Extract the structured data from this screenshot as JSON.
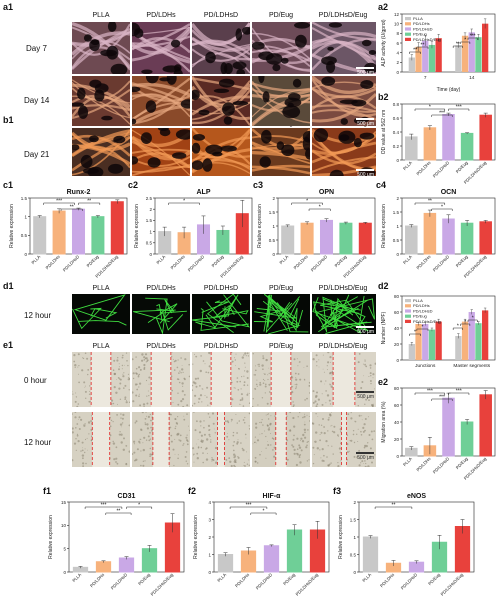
{
  "groups": [
    "PLLA",
    "PD/LDHs",
    "PD/LDHsD",
    "PD/Eug",
    "PD/LDHsD/Eug"
  ],
  "colors": [
    "#c8c8c8",
    "#f7b27c",
    "#c9a8e6",
    "#6fcf97",
    "#e8413c"
  ],
  "panel_labels": {
    "a1": "a1",
    "a2": "a2",
    "b1": "b1",
    "b2": "b2",
    "c1": "c1",
    "c2": "c2",
    "c3": "c3",
    "c4": "c4",
    "d1": "d1",
    "d2": "d2",
    "e1": "e1",
    "e2": "e2",
    "f1": "f1",
    "f2": "f2",
    "f3": "f3"
  },
  "micro": {
    "a1": {
      "rows": [
        "Day 7",
        "Day 14"
      ],
      "scale": "500 μm"
    },
    "b1": {
      "rows": [
        "Day 21"
      ],
      "scale": "500 μm"
    },
    "d1": {
      "rows": [
        "12 hour"
      ],
      "scale": "500 μm"
    },
    "e1": {
      "rows": [
        "0 hour",
        "12 hour"
      ],
      "scale": "500 μm"
    }
  },
  "chart_data": [
    {
      "id": "a2",
      "type": "bar",
      "title": "",
      "xlabel": "Time (day)",
      "ylabel": "ALP activity (U/gprot)",
      "categories": [
        "7",
        "14"
      ],
      "ylim": [
        0,
        12
      ],
      "yticks": [
        0,
        2,
        4,
        6,
        8,
        10,
        12
      ],
      "legend": "top-left",
      "series": [
        {
          "name": "PLLA",
          "values": [
            3.0,
            5.5
          ]
        },
        {
          "name": "PD/LDHs",
          "values": [
            5.2,
            7.5
          ]
        },
        {
          "name": "PD/LDHsD",
          "values": [
            6.5,
            8.2
          ]
        },
        {
          "name": "PD/Eug",
          "values": [
            5.6,
            7.2
          ]
        },
        {
          "name": "PD/LDHsD/Eug",
          "values": [
            7.0,
            10.0
          ]
        }
      ],
      "errors": [
        [
          0.6,
          0.9,
          1.1,
          0.7,
          0.8
        ],
        [
          0.5,
          0.6,
          0.7,
          0.6,
          1.0
        ]
      ],
      "sig": [
        "**",
        "*",
        "***",
        "**",
        "**"
      ]
    },
    {
      "id": "b2",
      "type": "bar",
      "title": "",
      "xlabel": "",
      "ylabel": "OD value at 562 nm",
      "categories": [
        "PLLA",
        "PD/LDHs",
        "PD/LDHsD",
        "PD/Eug",
        "PD/LDHsD/Eug"
      ],
      "ylim": [
        0,
        0.8
      ],
      "yticks": [
        0.0,
        0.2,
        0.4,
        0.6,
        0.8
      ],
      "values": [
        0.33,
        0.46,
        0.65,
        0.38,
        0.64
      ],
      "errors": [
        0.04,
        0.03,
        0.02,
        0.01,
        0.03
      ],
      "sig": [
        "*",
        "***",
        "***"
      ]
    },
    {
      "id": "c1",
      "type": "bar",
      "title": "Runx-2",
      "xlabel": "",
      "ylabel": "Relative expression",
      "categories": [
        "PLLA",
        "PD/LDHs",
        "PD/LDHsD",
        "PD/Eug",
        "PD/LDHsD/Eug"
      ],
      "ylim": [
        0,
        1.5
      ],
      "yticks": [
        0,
        0.5,
        1.0,
        1.5
      ],
      "values": [
        1.0,
        1.15,
        1.2,
        1.0,
        1.4
      ],
      "errors": [
        0.03,
        0.06,
        0.03,
        0.03,
        0.05
      ],
      "sig": [
        "***",
        "**",
        "**"
      ]
    },
    {
      "id": "c2",
      "type": "bar",
      "title": "ALP",
      "xlabel": "",
      "ylabel": "Relative expression",
      "categories": [
        "PLLA",
        "PD/LDHs",
        "PD/LDHsD",
        "PD/Eug",
        "PD/LDHsD/Eug"
      ],
      "ylim": [
        0,
        2.5
      ],
      "yticks": [
        0,
        0.5,
        1.0,
        1.5,
        2.0,
        2.5
      ],
      "values": [
        1.0,
        0.95,
        1.3,
        1.05,
        1.8
      ],
      "errors": [
        0.2,
        0.25,
        0.4,
        0.2,
        0.6
      ],
      "sig": [
        "*"
      ]
    },
    {
      "id": "c3",
      "type": "bar",
      "title": "OPN",
      "xlabel": "",
      "ylabel": "Relative expression",
      "categories": [
        "PLLA",
        "PD/LDHs",
        "PD/LDHsD",
        "PD/Eug",
        "PD/LDHsD/Eug"
      ],
      "ylim": [
        0,
        2.0
      ],
      "yticks": [
        0,
        0.5,
        1.0,
        1.5,
        2.0
      ],
      "values": [
        1.0,
        1.1,
        1.2,
        1.1,
        1.1
      ],
      "errors": [
        0.04,
        0.05,
        0.06,
        0.04,
        0.03
      ],
      "sig": [
        "*",
        "*"
      ]
    },
    {
      "id": "c4",
      "type": "bar",
      "title": "OCN",
      "xlabel": "",
      "ylabel": "Relative expression",
      "categories": [
        "PLLA",
        "PD/LDHs",
        "PD/LDHsD",
        "PD/Eug",
        "PD/LDHsD/Eug"
      ],
      "ylim": [
        0,
        2.0
      ],
      "yticks": [
        0,
        0.5,
        1.0,
        1.5,
        2.0
      ],
      "values": [
        1.0,
        1.45,
        1.25,
        1.1,
        1.15
      ],
      "errors": [
        0.05,
        0.12,
        0.15,
        0.1,
        0.05
      ],
      "sig": [
        "**",
        "*"
      ]
    },
    {
      "id": "d2",
      "type": "bar",
      "title": "",
      "xlabel": "",
      "ylabel": "Number (NPF)",
      "categories": [
        "Junctions",
        "Master segments"
      ],
      "ylim": [
        0,
        80
      ],
      "yticks": [
        0,
        20,
        40,
        60,
        80
      ],
      "legend": "top-left",
      "series": [
        {
          "name": "PLLA",
          "values": [
            20,
            30
          ]
        },
        {
          "name": "PD/LDHs",
          "values": [
            45,
            48
          ]
        },
        {
          "name": "PD/LDHsD",
          "values": [
            45,
            60
          ]
        },
        {
          "name": "PD/Eug",
          "values": [
            38,
            46
          ]
        },
        {
          "name": "PD/LDHsD/Eug",
          "values": [
            48,
            62
          ]
        }
      ],
      "errors": [
        [
          2,
          2,
          2,
          2,
          3
        ],
        [
          3,
          3,
          3,
          2,
          3
        ]
      ],
      "sig": [
        "*",
        "*",
        "*",
        "*",
        "*"
      ]
    },
    {
      "id": "e2",
      "type": "bar",
      "title": "",
      "xlabel": "",
      "ylabel": "Migration area (%)",
      "categories": [
        "PLLA",
        "PD/LDHs",
        "PD/LDHsD",
        "PD/Eug",
        "PD/LDHsD/Eug"
      ],
      "ylim": [
        0,
        80
      ],
      "yticks": [
        0,
        20,
        40,
        60,
        80
      ],
      "values": [
        9,
        12,
        68,
        40,
        72
      ],
      "errors": [
        2,
        10,
        6,
        3,
        5
      ],
      "sig": [
        "***",
        "***",
        "***"
      ]
    },
    {
      "id": "f1",
      "type": "bar",
      "title": "CD31",
      "xlabel": "",
      "ylabel": "Relative expression",
      "categories": [
        "PLLA",
        "PD/LDHs",
        "PD/LDHsD",
        "PD/Eug",
        "PD/LDHsD/Eug"
      ],
      "ylim": [
        0,
        15
      ],
      "yticks": [
        0,
        5,
        10,
        15
      ],
      "values": [
        1.0,
        2.2,
        3.0,
        5.0,
        10.5
      ],
      "errors": [
        0.2,
        0.2,
        0.3,
        0.7,
        2.0
      ],
      "sig": [
        "***",
        "**",
        "*"
      ]
    },
    {
      "id": "f2",
      "type": "bar",
      "title": "HIF-α",
      "xlabel": "",
      "ylabel": "Relative expression",
      "categories": [
        "PLLA",
        "PD/LDHs",
        "PD/LDHsD",
        "PD/Eug",
        "PD/LDHsD/Eug"
      ],
      "ylim": [
        0,
        4
      ],
      "yticks": [
        0,
        1,
        2,
        3,
        4
      ],
      "values": [
        1.0,
        1.2,
        1.5,
        2.4,
        2.4
      ],
      "errors": [
        0.1,
        0.2,
        0.05,
        0.3,
        0.5
      ],
      "sig": [
        "***",
        "*"
      ]
    },
    {
      "id": "f3",
      "type": "bar",
      "title": "eNOS",
      "xlabel": "",
      "ylabel": "Relative expression",
      "categories": [
        "PLLA",
        "PD/LDHs",
        "PD/LDHsD",
        "PD/Eug",
        "PD/LDHsD/Eug"
      ],
      "ylim": [
        0,
        2.0
      ],
      "yticks": [
        0,
        0.5,
        1.0,
        1.5,
        2.0
      ],
      "values": [
        1.0,
        0.25,
        0.28,
        0.85,
        1.3
      ],
      "errors": [
        0.04,
        0.08,
        0.04,
        0.2,
        0.2
      ],
      "sig": [
        "**"
      ]
    }
  ]
}
